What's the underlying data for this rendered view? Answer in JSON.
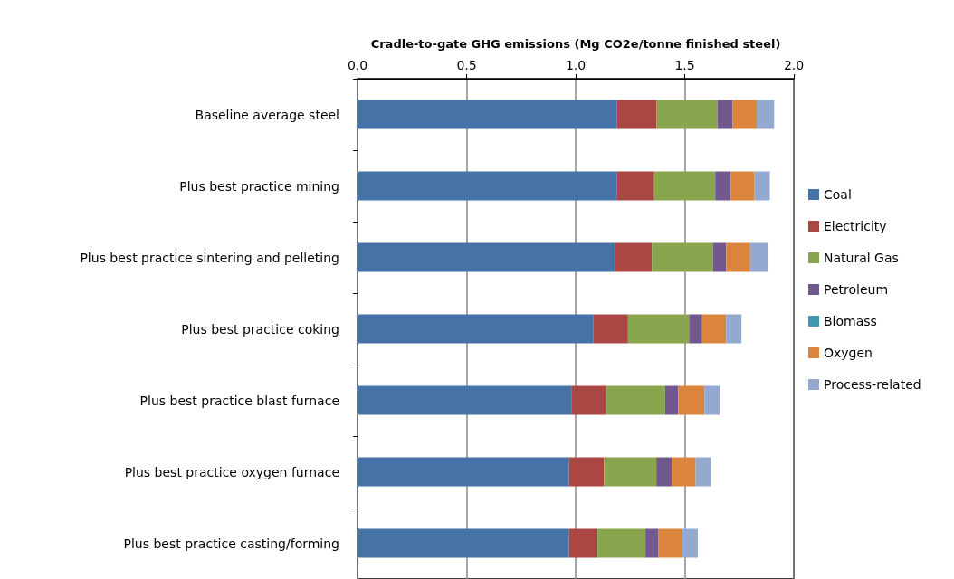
{
  "chart_data": {
    "type": "bar",
    "orientation": "horizontal",
    "stacked": true,
    "xlabel": "Cradle-to-gate GHG emissions (Mg CO2e/tonne finished steel)",
    "categories": [
      "Baseline average steel",
      "Plus best practice mining",
      "Plus best practice sintering and pelleting",
      "Plus best practice coking",
      "Plus best practice blast furnace",
      "Plus best practice oxygen furnace",
      "Plus best practice casting/forming"
    ],
    "series": [
      {
        "name": "Coal",
        "color": "#4572a7",
        "values": [
          1.19,
          1.19,
          1.18,
          1.08,
          0.98,
          0.97,
          0.97
        ]
      },
      {
        "name": "Electricity",
        "color": "#aa4643",
        "values": [
          0.18,
          0.17,
          0.17,
          0.16,
          0.16,
          0.16,
          0.13
        ]
      },
      {
        "name": "Natural Gas",
        "color": "#89a54e",
        "values": [
          0.28,
          0.28,
          0.28,
          0.28,
          0.27,
          0.24,
          0.22
        ]
      },
      {
        "name": "Petroleum",
        "color": "#71588f",
        "values": [
          0.07,
          0.07,
          0.06,
          0.06,
          0.06,
          0.07,
          0.06
        ]
      },
      {
        "name": "Biomass",
        "color": "#4198af",
        "values": [
          0,
          0,
          0,
          0,
          0,
          0,
          0
        ]
      },
      {
        "name": "Oxygen",
        "color": "#db843d",
        "values": [
          0.11,
          0.11,
          0.11,
          0.11,
          0.12,
          0.11,
          0.11
        ]
      },
      {
        "name": "Process-related",
        "color": "#93a9cf",
        "values": [
          0.08,
          0.07,
          0.08,
          0.07,
          0.07,
          0.07,
          0.07
        ]
      }
    ],
    "xlim": [
      0,
      2
    ],
    "xticks": [
      {
        "value": 0,
        "label": "0.0"
      },
      {
        "value": 0.5,
        "label": "0.5"
      },
      {
        "value": 1,
        "label": "1.0"
      },
      {
        "value": 1.5,
        "label": "1.5"
      },
      {
        "value": 2,
        "label": "2.0"
      }
    ],
    "grid": "x",
    "legend": "right"
  }
}
